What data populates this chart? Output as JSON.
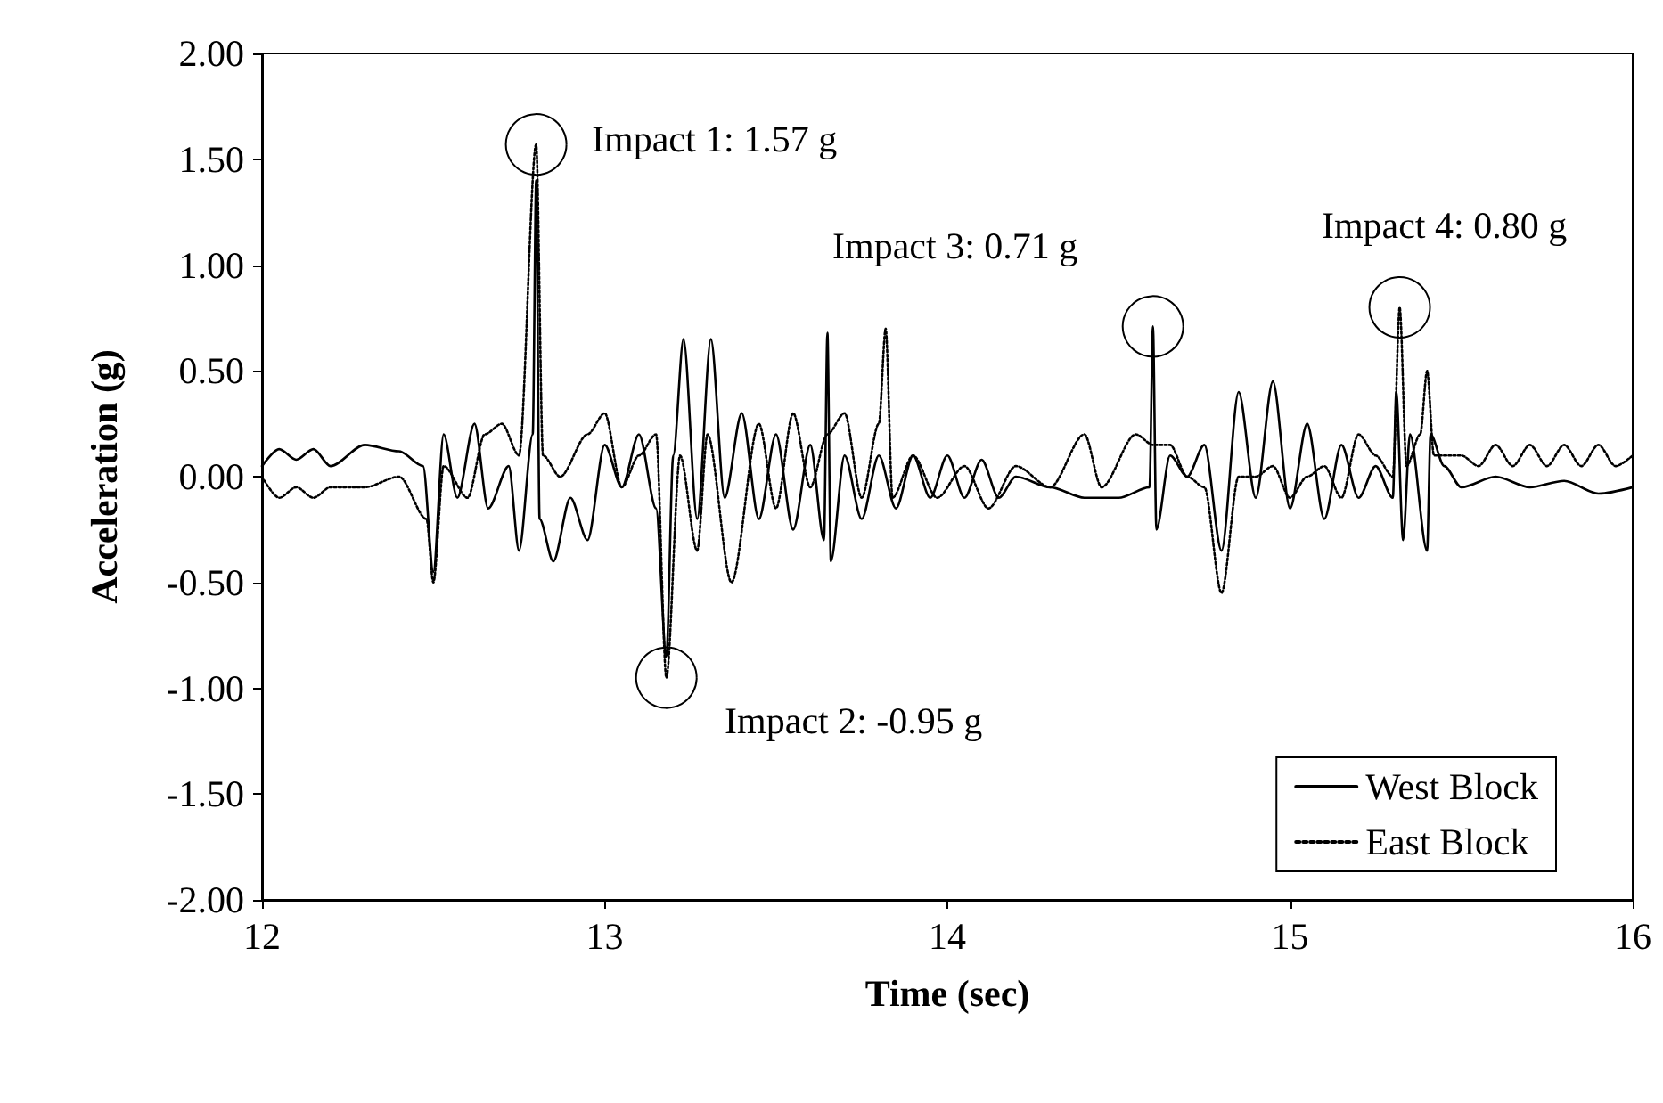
{
  "chart_data": {
    "type": "line",
    "xlabel": "Time (sec)",
    "ylabel": "Acceleration (g)",
    "xlim": [
      12,
      16
    ],
    "xticks": [
      12,
      13,
      14,
      15,
      16
    ],
    "ylim": [
      -2,
      2
    ],
    "yticks": [
      {
        "value": -2,
        "label": "-2.00"
      },
      {
        "value": -1.5,
        "label": "-1.50"
      },
      {
        "value": -1,
        "label": "-1.00"
      },
      {
        "value": -0.5,
        "label": "-0.50"
      },
      {
        "value": 0,
        "label": "0.00"
      },
      {
        "value": 0.5,
        "label": "0.50"
      },
      {
        "value": 1,
        "label": "1.00"
      },
      {
        "value": 1.5,
        "label": "1.50"
      },
      {
        "value": 2,
        "label": "2.00"
      }
    ],
    "grid": false,
    "legend": "bottom right",
    "marker": "none",
    "annotations": [
      {
        "text": "Impact 1: 1.57 g",
        "x": 12.8,
        "y": 1.57
      },
      {
        "text": "Impact 2: -0.95 g",
        "x": 13.18,
        "y": -0.95
      },
      {
        "text": "Impact 3: 0.71 g",
        "x": 14.6,
        "y": 0.71
      },
      {
        "text": "Impact 4: 0.80 g",
        "x": 15.32,
        "y": 0.8
      }
    ],
    "series": [
      {
        "name": "West Block",
        "color": "#000000",
        "line_style": "solid",
        "x": [
          12.0,
          12.05,
          12.1,
          12.15,
          12.2,
          12.3,
          12.4,
          12.47,
          12.5,
          12.53,
          12.57,
          12.62,
          12.66,
          12.72,
          12.75,
          12.79,
          12.8,
          12.81,
          12.85,
          12.9,
          12.95,
          13.0,
          13.05,
          13.1,
          13.15,
          13.18,
          13.2,
          13.23,
          13.27,
          13.31,
          13.35,
          13.4,
          13.45,
          13.5,
          13.55,
          13.6,
          13.64,
          13.65,
          13.66,
          13.7,
          13.75,
          13.8,
          13.85,
          13.9,
          13.95,
          14.0,
          14.05,
          14.1,
          14.15,
          14.2,
          14.3,
          14.4,
          14.5,
          14.59,
          14.6,
          14.61,
          14.65,
          14.7,
          14.75,
          14.8,
          14.85,
          14.9,
          14.95,
          15.0,
          15.05,
          15.1,
          15.15,
          15.2,
          15.25,
          15.3,
          15.31,
          15.33,
          15.35,
          15.4,
          15.41,
          15.45,
          15.5,
          15.6,
          15.7,
          15.8,
          15.9,
          16.0
        ],
        "values": [
          0.05,
          0.13,
          0.08,
          0.13,
          0.05,
          0.15,
          0.12,
          0.05,
          -0.45,
          0.2,
          -0.1,
          0.25,
          -0.15,
          0.05,
          -0.35,
          0.2,
          1.4,
          -0.2,
          -0.4,
          -0.1,
          -0.3,
          0.15,
          -0.05,
          0.2,
          -0.15,
          -0.85,
          0.1,
          0.65,
          -0.2,
          0.65,
          -0.1,
          0.3,
          -0.2,
          0.2,
          -0.25,
          0.15,
          -0.3,
          0.68,
          -0.4,
          0.1,
          -0.2,
          0.1,
          -0.15,
          0.1,
          -0.1,
          0.1,
          -0.1,
          0.08,
          -0.1,
          0.0,
          -0.05,
          -0.1,
          -0.1,
          -0.05,
          0.71,
          -0.25,
          0.1,
          0.0,
          0.15,
          -0.35,
          0.4,
          -0.1,
          0.45,
          -0.15,
          0.25,
          -0.2,
          0.15,
          -0.1,
          0.05,
          -0.1,
          0.4,
          -0.3,
          0.2,
          -0.35,
          0.2,
          0.05,
          -0.05,
          0.0,
          -0.05,
          -0.02,
          -0.08,
          -0.05
        ]
      },
      {
        "name": "East Block",
        "color": "#000000",
        "line_style": "dotted",
        "x": [
          12.0,
          12.05,
          12.1,
          12.15,
          12.2,
          12.3,
          12.4,
          12.48,
          12.5,
          12.53,
          12.6,
          12.65,
          12.7,
          12.75,
          12.8,
          12.82,
          12.87,
          12.95,
          13.0,
          13.05,
          13.1,
          13.15,
          13.18,
          13.22,
          13.27,
          13.3,
          13.37,
          13.45,
          13.5,
          13.55,
          13.6,
          13.65,
          13.7,
          13.75,
          13.8,
          13.82,
          13.84,
          13.9,
          13.97,
          14.05,
          14.12,
          14.2,
          14.3,
          14.4,
          14.45,
          14.55,
          14.6,
          14.65,
          14.7,
          14.75,
          14.8,
          14.85,
          14.9,
          14.95,
          15.0,
          15.05,
          15.1,
          15.15,
          15.2,
          15.25,
          15.3,
          15.32,
          15.34,
          15.38,
          15.4,
          15.42,
          15.5,
          15.55,
          15.6,
          15.65,
          15.7,
          15.75,
          15.8,
          15.85,
          15.9,
          15.95,
          16.0
        ],
        "values": [
          0.0,
          -0.1,
          -0.05,
          -0.1,
          -0.05,
          -0.05,
          0.0,
          -0.2,
          -0.5,
          0.05,
          -0.1,
          0.2,
          0.25,
          0.1,
          1.57,
          0.1,
          0.0,
          0.2,
          0.3,
          -0.05,
          0.1,
          0.2,
          -0.95,
          0.1,
          -0.35,
          0.2,
          -0.5,
          0.25,
          -0.15,
          0.3,
          -0.05,
          0.2,
          0.3,
          -0.1,
          0.25,
          0.7,
          -0.1,
          0.1,
          -0.1,
          0.05,
          -0.15,
          0.05,
          -0.05,
          0.2,
          -0.05,
          0.2,
          0.15,
          0.15,
          0.0,
          -0.05,
          -0.55,
          0.0,
          0.0,
          0.05,
          -0.1,
          0.0,
          0.05,
          -0.1,
          0.2,
          0.1,
          0.0,
          0.8,
          0.05,
          0.2,
          0.5,
          0.1,
          0.1,
          0.05,
          0.15,
          0.05,
          0.15,
          0.05,
          0.15,
          0.05,
          0.15,
          0.05,
          0.1
        ]
      }
    ]
  }
}
